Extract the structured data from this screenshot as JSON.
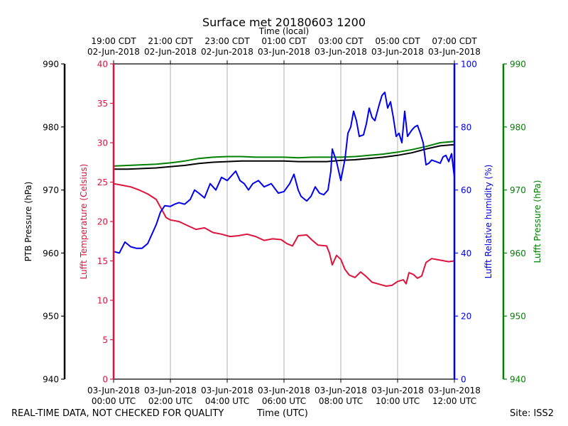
{
  "chart_data": {
    "type": "line",
    "title": "Surface met 20180603 1200",
    "xlabel": "Time (UTC)",
    "x2label": "Time (local)",
    "x_hours_utc": [
      0,
      12
    ],
    "xticks_utc": [
      [
        "03-Jun-2018",
        "00:00 UTC"
      ],
      [
        "03-Jun-2018",
        "02:00 UTC"
      ],
      [
        "03-Jun-2018",
        "04:00 UTC"
      ],
      [
        "03-Jun-2018",
        "06:00 UTC"
      ],
      [
        "03-Jun-2018",
        "08:00 UTC"
      ],
      [
        "03-Jun-2018",
        "10:00 UTC"
      ],
      [
        "03-Jun-2018",
        "12:00 UTC"
      ]
    ],
    "xticks_local": [
      [
        "19:00 CDT",
        "02-Jun-2018"
      ],
      [
        "21:00 CDT",
        "02-Jun-2018"
      ],
      [
        "23:00 CDT",
        "02-Jun-2018"
      ],
      [
        "01:00 CDT",
        "03-Jun-2018"
      ],
      [
        "03:00 CDT",
        "03-Jun-2018"
      ],
      [
        "05:00 CDT",
        "03-Jun-2018"
      ],
      [
        "07:00 CDT",
        "03-Jun-2018"
      ]
    ],
    "axes": {
      "ptb": {
        "label": "PTB Pressure (hPa)",
        "range": [
          940,
          990
        ],
        "ticks": [
          940,
          950,
          960,
          970,
          980,
          990
        ],
        "color": "#000000"
      },
      "temp": {
        "label": "Lufft Temperature (Celsius)",
        "range": [
          0,
          40
        ],
        "ticks": [
          0,
          5,
          10,
          15,
          20,
          25,
          30,
          35,
          40
        ],
        "color": "#dc143c"
      },
      "rh": {
        "label": "Lufft Relative humidity (%)",
        "range": [
          0,
          100
        ],
        "ticks": [
          0,
          20,
          40,
          60,
          80,
          100
        ],
        "color": "#0000ee"
      },
      "lufft_p": {
        "label": "Lufft Pressure (hPa)",
        "range": [
          940,
          990
        ],
        "ticks": [
          940,
          950,
          960,
          970,
          980,
          990
        ],
        "color": "#008000"
      }
    },
    "series": [
      {
        "name": "PTB Pressure",
        "axis": "ptb",
        "color": "#000000",
        "points": [
          [
            0,
            973.3
          ],
          [
            0.5,
            973.3
          ],
          [
            1,
            973.4
          ],
          [
            1.5,
            973.5
          ],
          [
            2,
            973.7
          ],
          [
            2.5,
            973.9
          ],
          [
            3,
            974.2
          ],
          [
            3.5,
            974.4
          ],
          [
            4,
            974.5
          ],
          [
            4.5,
            974.6
          ],
          [
            5,
            974.6
          ],
          [
            5.5,
            974.6
          ],
          [
            6,
            974.6
          ],
          [
            6.5,
            974.5
          ],
          [
            7,
            974.5
          ],
          [
            7.5,
            974.5
          ],
          [
            8,
            974.7
          ],
          [
            8.5,
            974.8
          ],
          [
            9,
            975.0
          ],
          [
            9.5,
            975.2
          ],
          [
            10,
            975.5
          ],
          [
            10.5,
            975.9
          ],
          [
            11,
            976.5
          ],
          [
            11.5,
            977.0
          ],
          [
            12,
            977.2
          ]
        ]
      },
      {
        "name": "Lufft Pressure",
        "axis": "lufft_p",
        "color": "#008000",
        "points": [
          [
            0,
            973.8
          ],
          [
            0.5,
            973.9
          ],
          [
            1,
            974.0
          ],
          [
            1.5,
            974.1
          ],
          [
            2,
            974.3
          ],
          [
            2.5,
            974.6
          ],
          [
            3,
            975.0
          ],
          [
            3.5,
            975.2
          ],
          [
            4,
            975.3
          ],
          [
            4.5,
            975.3
          ],
          [
            5,
            975.2
          ],
          [
            5.5,
            975.2
          ],
          [
            6,
            975.2
          ],
          [
            6.5,
            975.1
          ],
          [
            7,
            975.2
          ],
          [
            7.5,
            975.2
          ],
          [
            8,
            975.2
          ],
          [
            8.5,
            975.3
          ],
          [
            9,
            975.5
          ],
          [
            9.5,
            975.7
          ],
          [
            10,
            976.0
          ],
          [
            10.5,
            976.4
          ],
          [
            11,
            976.9
          ],
          [
            11.5,
            977.5
          ],
          [
            12,
            977.7
          ]
        ]
      },
      {
        "name": "Lufft Temperature",
        "axis": "temp",
        "color": "#dc143c",
        "points": [
          [
            0,
            24.8
          ],
          [
            0.3,
            24.6
          ],
          [
            0.6,
            24.4
          ],
          [
            0.9,
            24.0
          ],
          [
            1.2,
            23.5
          ],
          [
            1.5,
            22.8
          ],
          [
            1.7,
            21.5
          ],
          [
            1.85,
            20.5
          ],
          [
            2,
            20.2
          ],
          [
            2.3,
            20.0
          ],
          [
            2.6,
            19.5
          ],
          [
            2.9,
            19.0
          ],
          [
            3.2,
            19.2
          ],
          [
            3.5,
            18.6
          ],
          [
            3.8,
            18.4
          ],
          [
            4.1,
            18.1
          ],
          [
            4.4,
            18.2
          ],
          [
            4.7,
            18.4
          ],
          [
            5,
            18.1
          ],
          [
            5.3,
            17.6
          ],
          [
            5.6,
            17.8
          ],
          [
            5.9,
            17.7
          ],
          [
            6.1,
            17.2
          ],
          [
            6.3,
            16.9
          ],
          [
            6.5,
            18.2
          ],
          [
            6.8,
            18.3
          ],
          [
            7,
            17.6
          ],
          [
            7.2,
            17.0
          ],
          [
            7.5,
            16.9
          ],
          [
            7.6,
            16.0
          ],
          [
            7.7,
            14.5
          ],
          [
            7.85,
            15.7
          ],
          [
            8,
            15.2
          ],
          [
            8.15,
            13.9
          ],
          [
            8.3,
            13.2
          ],
          [
            8.5,
            12.9
          ],
          [
            8.7,
            13.6
          ],
          [
            8.9,
            13.0
          ],
          [
            9.1,
            12.3
          ],
          [
            9.4,
            12.0
          ],
          [
            9.6,
            11.8
          ],
          [
            9.8,
            11.9
          ],
          [
            10,
            12.4
          ],
          [
            10.2,
            12.6
          ],
          [
            10.3,
            12.1
          ],
          [
            10.4,
            13.5
          ],
          [
            10.55,
            13.3
          ],
          [
            10.7,
            12.8
          ],
          [
            10.85,
            13.1
          ],
          [
            11,
            14.8
          ],
          [
            11.2,
            15.3
          ],
          [
            11.5,
            15.1
          ],
          [
            11.8,
            14.9
          ],
          [
            12,
            15.0
          ]
        ]
      },
      {
        "name": "Lufft Relative humidity",
        "axis": "rh",
        "color": "#0000ee",
        "points": [
          [
            0,
            40.5
          ],
          [
            0.2,
            40.0
          ],
          [
            0.4,
            43.5
          ],
          [
            0.6,
            42.0
          ],
          [
            0.8,
            41.5
          ],
          [
            1,
            41.5
          ],
          [
            1.2,
            43.0
          ],
          [
            1.35,
            46.0
          ],
          [
            1.5,
            49.0
          ],
          [
            1.65,
            53.0
          ],
          [
            1.8,
            55.0
          ],
          [
            2,
            54.8
          ],
          [
            2.15,
            55.5
          ],
          [
            2.3,
            56.0
          ],
          [
            2.5,
            55.5
          ],
          [
            2.7,
            57.0
          ],
          [
            2.85,
            60.0
          ],
          [
            3,
            59.0
          ],
          [
            3.2,
            57.5
          ],
          [
            3.4,
            62.0
          ],
          [
            3.6,
            60.0
          ],
          [
            3.8,
            64.0
          ],
          [
            4,
            63.0
          ],
          [
            4.2,
            65.0
          ],
          [
            4.3,
            66.0
          ],
          [
            4.45,
            63.0
          ],
          [
            4.6,
            62.0
          ],
          [
            4.75,
            60.0
          ],
          [
            4.9,
            62.0
          ],
          [
            5.1,
            63.0
          ],
          [
            5.3,
            61.0
          ],
          [
            5.55,
            62.0
          ],
          [
            5.8,
            59.0
          ],
          [
            6,
            59.5
          ],
          [
            6.2,
            62.0
          ],
          [
            6.35,
            65.0
          ],
          [
            6.5,
            60.0
          ],
          [
            6.6,
            58.0
          ],
          [
            6.8,
            56.5
          ],
          [
            6.95,
            58.0
          ],
          [
            7.1,
            61.0
          ],
          [
            7.25,
            59.0
          ],
          [
            7.4,
            58.5
          ],
          [
            7.55,
            60.0
          ],
          [
            7.65,
            66.0
          ],
          [
            7.7,
            73.0
          ],
          [
            7.85,
            69.0
          ],
          [
            8,
            63.0
          ],
          [
            8.15,
            70.0
          ],
          [
            8.25,
            78.0
          ],
          [
            8.35,
            80.0
          ],
          [
            8.45,
            85.0
          ],
          [
            8.55,
            82.0
          ],
          [
            8.65,
            77.0
          ],
          [
            8.8,
            77.5
          ],
          [
            8.9,
            81.0
          ],
          [
            9,
            86.0
          ],
          [
            9.1,
            83.0
          ],
          [
            9.2,
            82.0
          ],
          [
            9.35,
            87.0
          ],
          [
            9.45,
            90.0
          ],
          [
            9.55,
            91.0
          ],
          [
            9.65,
            86.0
          ],
          [
            9.75,
            88.0
          ],
          [
            9.85,
            83.0
          ],
          [
            9.95,
            77.0
          ],
          [
            10.05,
            78.0
          ],
          [
            10.15,
            75.0
          ],
          [
            10.25,
            85.0
          ],
          [
            10.35,
            77.0
          ],
          [
            10.5,
            79.0
          ],
          [
            10.6,
            80.0
          ],
          [
            10.7,
            80.5
          ],
          [
            10.8,
            78.0
          ],
          [
            10.9,
            75.0
          ],
          [
            11,
            68.0
          ],
          [
            11.1,
            68.5
          ],
          [
            11.2,
            69.5
          ],
          [
            11.35,
            69.0
          ],
          [
            11.5,
            68.5
          ],
          [
            11.6,
            70.5
          ],
          [
            11.7,
            71.0
          ],
          [
            11.8,
            69.0
          ],
          [
            11.9,
            71.5
          ],
          [
            12,
            64.0
          ]
        ]
      }
    ]
  },
  "footer": {
    "disclaimer": "REAL-TIME DATA, NOT CHECKED FOR QUALITY",
    "xlabel": "Time (UTC)",
    "site": "Site: ISS2"
  }
}
